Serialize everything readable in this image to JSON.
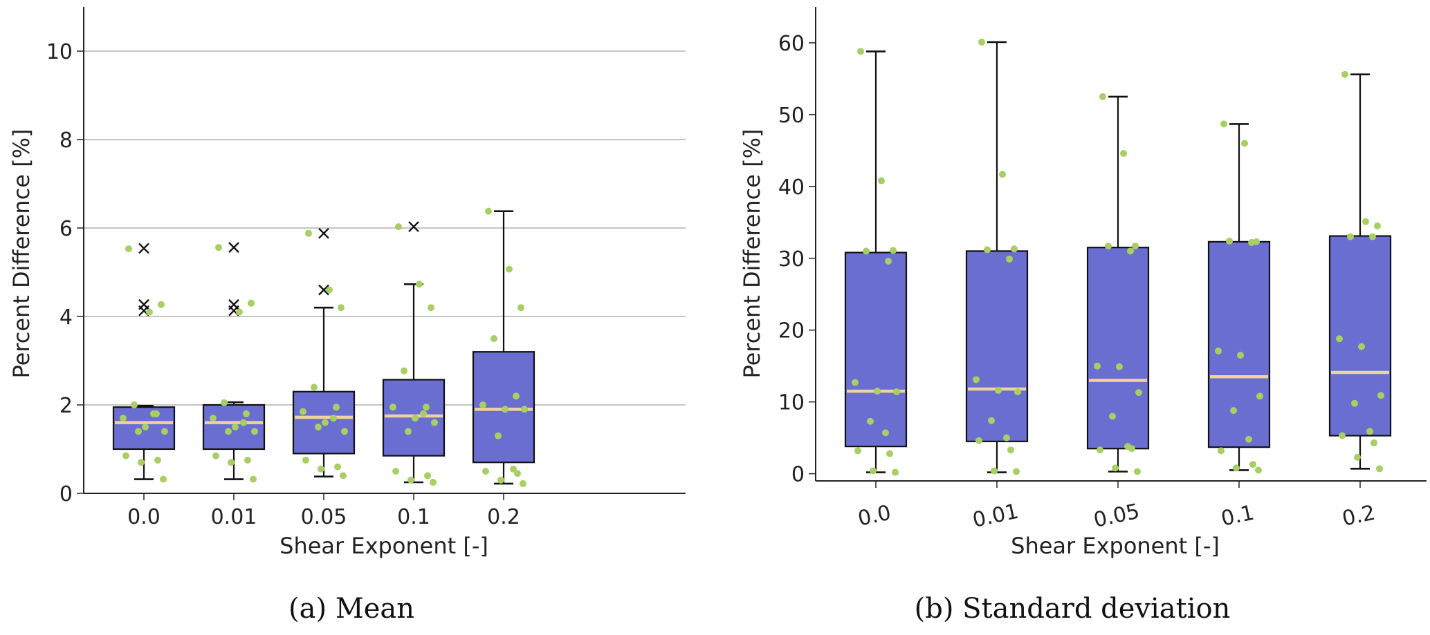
{
  "chart_data": [
    {
      "type": "box",
      "caption": "(a) Mean",
      "xlabel": "Shear Exponent [-]",
      "ylabel": "Percent Difference [%]",
      "ylim": [
        0,
        11
      ],
      "yticks": [
        0,
        2,
        4,
        6,
        8,
        10
      ],
      "grid": "horizontal",
      "categories": [
        "0.0",
        "0.01",
        "0.05",
        "0.1",
        "0.2"
      ],
      "colors": {
        "box": "#6B6ED1",
        "median": "#F2D29A",
        "points": "#A8CE64"
      },
      "boxes": [
        {
          "whislo": 0.32,
          "q1": 1.0,
          "med": 1.6,
          "q3": 1.95,
          "whishi": 1.98,
          "fliers": [
            4.13,
            4.27,
            5.54
          ]
        },
        {
          "whislo": 0.32,
          "q1": 1.0,
          "med": 1.6,
          "q3": 2.0,
          "whishi": 2.06,
          "fliers": [
            4.13,
            4.27,
            5.56
          ]
        },
        {
          "whislo": 0.38,
          "q1": 0.9,
          "med": 1.72,
          "q3": 2.3,
          "whishi": 4.2,
          "fliers": [
            4.6,
            5.88
          ]
        },
        {
          "whislo": 0.25,
          "q1": 0.85,
          "med": 1.75,
          "q3": 2.57,
          "whishi": 4.73,
          "fliers": [
            6.03
          ]
        },
        {
          "whislo": 0.22,
          "q1": 0.7,
          "med": 1.9,
          "q3": 3.2,
          "whishi": 6.38,
          "fliers": []
        }
      ],
      "points": [
        [
          5.53,
          4.1,
          4.27,
          2.0,
          1.8,
          1.7,
          1.5,
          1.4,
          1.4,
          1.8,
          0.85,
          0.75,
          0.7,
          0.32
        ],
        [
          5.56,
          4.1,
          4.3,
          2.05,
          1.8,
          1.7,
          1.5,
          1.4,
          1.4,
          1.6,
          0.85,
          0.75,
          0.7,
          0.32
        ],
        [
          5.88,
          4.6,
          4.2,
          2.4,
          1.95,
          1.85,
          1.6,
          1.4,
          1.5,
          1.7,
          0.75,
          0.6,
          0.55,
          0.4
        ],
        [
          6.03,
          4.73,
          4.2,
          2.77,
          1.95,
          1.95,
          1.7,
          1.6,
          1.4,
          1.8,
          0.5,
          0.4,
          0.3,
          0.25
        ],
        [
          6.38,
          5.07,
          4.2,
          3.5,
          2.2,
          2.0,
          1.9,
          1.9,
          1.3,
          0.55,
          0.5,
          0.45,
          0.3,
          0.22
        ]
      ]
    },
    {
      "type": "box",
      "caption": "(b) Standard deviation",
      "xlabel": "Shear Exponent [-]",
      "ylabel": "Percent Difference [%]",
      "ylim": [
        -1,
        65
      ],
      "yticks": [
        0,
        10,
        20,
        30,
        40,
        50,
        60
      ],
      "grid": "none",
      "categories": [
        "0.0",
        "0.01",
        "0.05",
        "0.1",
        "0.2"
      ],
      "colors": {
        "box": "#6B6ED1",
        "median": "#F2D29A",
        "points": "#A8CE64"
      },
      "boxes": [
        {
          "whislo": 0.2,
          "q1": 3.8,
          "med": 11.5,
          "q3": 30.8,
          "whishi": 58.8,
          "fliers": []
        },
        {
          "whislo": 0.2,
          "q1": 4.5,
          "med": 11.8,
          "q3": 31.0,
          "whishi": 60.1,
          "fliers": []
        },
        {
          "whislo": 0.3,
          "q1": 3.5,
          "med": 13.0,
          "q3": 31.5,
          "whishi": 52.5,
          "fliers": []
        },
        {
          "whislo": 0.5,
          "q1": 3.7,
          "med": 13.5,
          "q3": 32.3,
          "whishi": 48.7,
          "fliers": []
        },
        {
          "whislo": 0.7,
          "q1": 5.3,
          "med": 14.1,
          "q3": 33.1,
          "whishi": 55.6,
          "fliers": []
        }
      ],
      "points": [
        [
          58.8,
          40.8,
          31.1,
          31.0,
          29.6,
          12.7,
          11.5,
          11.4,
          7.3,
          5.7,
          3.2,
          2.8,
          0.4,
          0.2
        ],
        [
          60.1,
          41.7,
          31.3,
          31.2,
          29.9,
          13.1,
          11.6,
          11.4,
          7.4,
          5.0,
          4.6,
          3.3,
          0.4,
          0.3
        ],
        [
          52.5,
          44.6,
          31.7,
          31.7,
          31.0,
          15.0,
          14.9,
          11.3,
          8.0,
          3.8,
          3.3,
          3.5,
          0.8,
          0.3
        ],
        [
          48.7,
          46.0,
          32.3,
          32.4,
          32.2,
          17.1,
          16.5,
          10.8,
          8.8,
          4.8,
          3.2,
          1.3,
          0.8,
          0.5
        ],
        [
          55.6,
          35.1,
          34.5,
          33.0,
          33.0,
          18.8,
          17.7,
          10.9,
          9.8,
          5.9,
          5.3,
          4.3,
          2.3,
          0.7
        ]
      ]
    }
  ]
}
